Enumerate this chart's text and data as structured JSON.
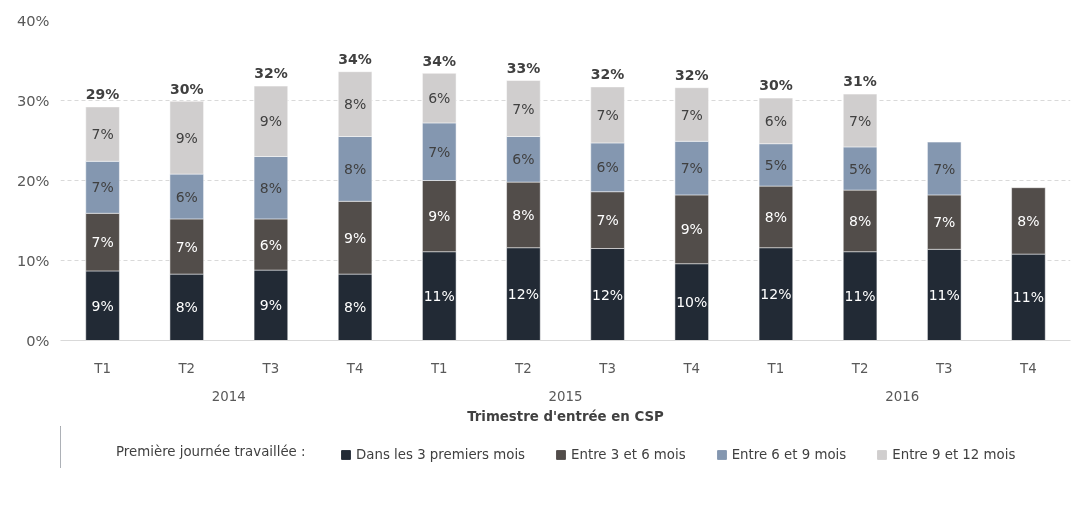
{
  "chart_data": {
    "type": "bar",
    "stacked": true,
    "categories": [
      "T1",
      "T2",
      "T3",
      "T4",
      "T1",
      "T2",
      "T3",
      "T4",
      "T1",
      "T2",
      "T3",
      "T4"
    ],
    "xlabel": "Trimestre d'entrée en CSP",
    "legend_title": "Première journée travaillée :",
    "annotations": [
      "2014",
      "2015",
      "2016"
    ],
    "series": [
      {
        "name": "Dans les 3 premiers mois",
        "color": "#222a35",
        "values": [
          8.7,
          8.3,
          8.8,
          8.3,
          11.1,
          11.6,
          11.5,
          9.6,
          11.6,
          11.1,
          11.4,
          10.8
        ],
        "value_labels": [
          "9%",
          "8%",
          "9%",
          "8%",
          "11%",
          "12%",
          "12%",
          "10%",
          "12%",
          "11%",
          "11%",
          "11%"
        ]
      },
      {
        "name": "Entre 3 et 6 mois",
        "color": "#524d4a",
        "values": [
          7.2,
          6.9,
          6.4,
          9.1,
          8.9,
          8.2,
          7.1,
          8.6,
          7.7,
          7.7,
          6.8,
          8.3
        ],
        "value_labels": [
          "7%",
          "7%",
          "6%",
          "9%",
          "9%",
          "8%",
          "7%",
          "9%",
          "8%",
          "8%",
          "7%",
          "8%"
        ]
      },
      {
        "name": "Entre 6 et 9 mois",
        "color": "#8497b0",
        "values": [
          6.5,
          5.6,
          7.8,
          8.1,
          7.2,
          5.7,
          6.1,
          6.7,
          5.3,
          5.4,
          6.6,
          null
        ],
        "value_labels": [
          "7%",
          "6%",
          "8%",
          "8%",
          "7%",
          "6%",
          "6%",
          "7%",
          "5%",
          "5%",
          "7%",
          null
        ]
      },
      {
        "name": "Entre 9 et 12 mois",
        "color": "#d0cece",
        "values": [
          6.8,
          9.1,
          8.8,
          8.1,
          6.2,
          7.0,
          7.0,
          6.7,
          5.7,
          6.6,
          null,
          null
        ],
        "value_labels": [
          "7%",
          "9%",
          "9%",
          "8%",
          "6%",
          "7%",
          "7%",
          "7%",
          "6%",
          "7%",
          null,
          null
        ]
      }
    ],
    "totals": [
      "29%",
      "30%",
      "32%",
      "34%",
      "34%",
      "33%",
      "32%",
      "32%",
      "30%",
      "31%",
      null,
      null
    ],
    "ylim": [
      0,
      40
    ],
    "yticks": [
      {
        "value": 0,
        "label": "0%"
      },
      {
        "value": 10,
        "label": "10%"
      },
      {
        "value": 20,
        "label": "20%"
      },
      {
        "value": 30,
        "label": "30%"
      },
      {
        "value": 40,
        "label": "40%"
      }
    ],
    "grid": "y",
    "legend": "bottom"
  }
}
